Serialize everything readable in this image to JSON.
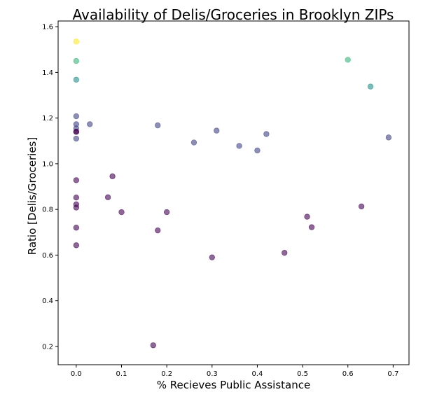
{
  "chart_data": {
    "type": "scatter",
    "title": "Availability of Delis/Groceries in Brooklyn ZIPs",
    "xlabel": "% Recieves Public Assistance",
    "ylabel": "Ratio [Delis/Groceries]",
    "xlim": [
      -0.04,
      0.735
    ],
    "ylim": [
      0.12,
      1.625
    ],
    "xticks": [
      0.0,
      0.1,
      0.2,
      0.3,
      0.4,
      0.5,
      0.6,
      0.7
    ],
    "xtick_labels": [
      "0.0",
      "0.1",
      "0.2",
      "0.3",
      "0.4",
      "0.5",
      "0.6",
      "0.7"
    ],
    "yticks": [
      0.2,
      0.4,
      0.6,
      0.8,
      1.0,
      1.2,
      1.4,
      1.6
    ],
    "ytick_labels": [
      "0.2",
      "0.4",
      "0.6",
      "0.8",
      "1.0",
      "1.2",
      "1.4",
      "1.6"
    ],
    "grid": false,
    "colormap": "viridis",
    "point_alpha": 0.6,
    "points": [
      {
        "x": 0.0,
        "y": 1.535,
        "color": "#fde725"
      },
      {
        "x": 0.0,
        "y": 1.45,
        "color": "#35b779"
      },
      {
        "x": 0.0,
        "y": 1.368,
        "color": "#21918c"
      },
      {
        "x": 0.0,
        "y": 1.208,
        "color": "#414487"
      },
      {
        "x": 0.0,
        "y": 1.173,
        "color": "#414487"
      },
      {
        "x": 0.0,
        "y": 1.155,
        "color": "#414487"
      },
      {
        "x": 0.0,
        "y": 1.14,
        "color": "#440154"
      },
      {
        "x": 0.0,
        "y": 1.14,
        "color": "#440154"
      },
      {
        "x": 0.0,
        "y": 1.11,
        "color": "#414487"
      },
      {
        "x": 0.0,
        "y": 0.928,
        "color": "#440154"
      },
      {
        "x": 0.0,
        "y": 0.852,
        "color": "#440154"
      },
      {
        "x": 0.0,
        "y": 0.822,
        "color": "#440154"
      },
      {
        "x": 0.0,
        "y": 0.808,
        "color": "#440154"
      },
      {
        "x": 0.0,
        "y": 0.72,
        "color": "#440154"
      },
      {
        "x": 0.0,
        "y": 0.643,
        "color": "#440154"
      },
      {
        "x": 0.03,
        "y": 1.173,
        "color": "#414487"
      },
      {
        "x": 0.07,
        "y": 0.853,
        "color": "#440154"
      },
      {
        "x": 0.08,
        "y": 0.945,
        "color": "#440154"
      },
      {
        "x": 0.1,
        "y": 0.788,
        "color": "#440154"
      },
      {
        "x": 0.17,
        "y": 0.205,
        "color": "#440154"
      },
      {
        "x": 0.18,
        "y": 1.168,
        "color": "#414487"
      },
      {
        "x": 0.18,
        "y": 0.708,
        "color": "#440154"
      },
      {
        "x": 0.2,
        "y": 0.788,
        "color": "#440154"
      },
      {
        "x": 0.26,
        "y": 1.093,
        "color": "#414487"
      },
      {
        "x": 0.3,
        "y": 0.59,
        "color": "#440154"
      },
      {
        "x": 0.31,
        "y": 1.145,
        "color": "#414487"
      },
      {
        "x": 0.36,
        "y": 1.078,
        "color": "#414487"
      },
      {
        "x": 0.4,
        "y": 1.058,
        "color": "#414487"
      },
      {
        "x": 0.42,
        "y": 1.13,
        "color": "#414487"
      },
      {
        "x": 0.46,
        "y": 0.61,
        "color": "#440154"
      },
      {
        "x": 0.51,
        "y": 0.768,
        "color": "#440154"
      },
      {
        "x": 0.52,
        "y": 0.722,
        "color": "#440154"
      },
      {
        "x": 0.6,
        "y": 1.455,
        "color": "#35b779"
      },
      {
        "x": 0.63,
        "y": 0.813,
        "color": "#440154"
      },
      {
        "x": 0.65,
        "y": 1.338,
        "color": "#21918c"
      },
      {
        "x": 0.69,
        "y": 1.115,
        "color": "#414487"
      }
    ]
  }
}
